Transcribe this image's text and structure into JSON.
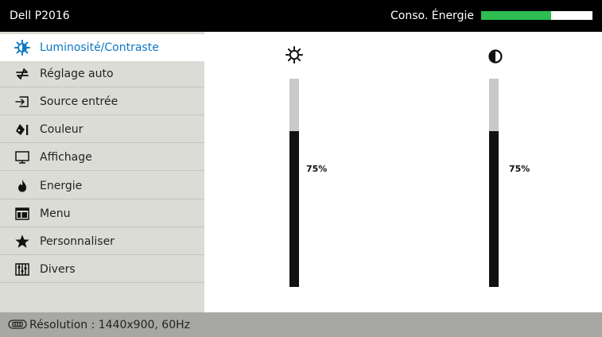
{
  "header": {
    "title": "Dell P2016",
    "energy_label": "Conso. Énergie",
    "energy_level": 0.63,
    "energy_color": "#2dbd52"
  },
  "sidebar": {
    "items": [
      {
        "label": "Luminosité/Contraste",
        "icon": "brightness-contrast-icon",
        "active": true
      },
      {
        "label": "Réglage auto",
        "icon": "auto-adjust-icon"
      },
      {
        "label": "Source entrée",
        "icon": "input-source-icon"
      },
      {
        "label": "Couleur",
        "icon": "color-icon"
      },
      {
        "label": "Affichage",
        "icon": "display-icon"
      },
      {
        "label": "Energie",
        "icon": "energy-icon"
      },
      {
        "label": "Menu",
        "icon": "menu-icon"
      },
      {
        "label": "Personnaliser",
        "icon": "star-icon"
      },
      {
        "label": "Divers",
        "icon": "others-icon"
      }
    ],
    "active_color": "#0a79c2"
  },
  "sliders": {
    "brightness": {
      "icon": "sun-icon",
      "value_text": "75%",
      "level": 0.75
    },
    "contrast": {
      "icon": "contrast-icon",
      "value_text": "75%",
      "level": 0.75
    }
  },
  "status": {
    "icon": "resolution-icon",
    "text": "Résolution : 1440x900, 60Hz"
  }
}
